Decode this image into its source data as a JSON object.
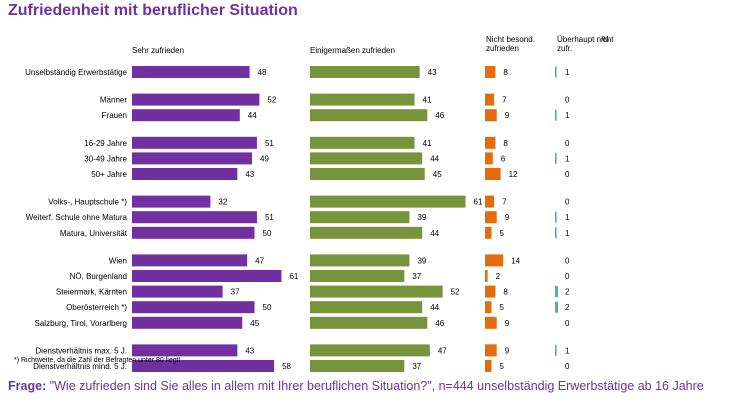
{
  "title": "Zufriedenheit mit beruflicher Situation",
  "chart_data": {
    "type": "bar",
    "orientation": "horizontal",
    "stacked": false,
    "series_headers": [
      "Sehr zufrieden",
      "Einigermaßen zufrieden",
      "Nicht besond. zufrieden",
      "Überhaupt nicht zufr."
    ],
    "unit_label": "%",
    "colors": [
      "#7030a0",
      "#77933c",
      "#e46c0a",
      "#4bacc6"
    ],
    "categories": [
      "Unselbständig Erwerbstätige",
      "Männer",
      "Frauen",
      "16-29 Jahre",
      "30-49 Jahre",
      "50+ Jahre",
      "Volks-, Hauptschule *)",
      "Weiterf. Schule ohne Matura",
      "Matura, Universität",
      "Wien",
      "NÖ, Burgenland",
      "Steiermark, Kärnten",
      "Oberösterreich *)",
      "Salzburg, Tirol, Vorarlberg",
      "Dienstverhältnis max. 5 J.",
      "Dienstverhältnis mind. 5 J."
    ],
    "groups": [
      [
        0
      ],
      [
        1,
        2
      ],
      [
        3,
        4,
        5
      ],
      [
        6,
        7,
        8
      ],
      [
        9,
        10,
        11,
        12,
        13
      ],
      [
        14,
        15
      ]
    ],
    "series": [
      {
        "name": "Sehr zufrieden",
        "values": [
          48,
          52,
          44,
          51,
          49,
          43,
          32,
          51,
          50,
          47,
          61,
          37,
          50,
          45,
          43,
          58
        ]
      },
      {
        "name": "Einigermaßen zufrieden",
        "values": [
          43,
          41,
          46,
          41,
          44,
          45,
          61,
          39,
          44,
          39,
          37,
          52,
          44,
          46,
          47,
          37
        ]
      },
      {
        "name": "Nicht besond. zufrieden",
        "values": [
          8,
          7,
          9,
          8,
          6,
          12,
          7,
          9,
          5,
          14,
          2,
          8,
          5,
          9,
          9,
          5
        ]
      },
      {
        "name": "Überhaupt nicht zufr.",
        "values": [
          1,
          0,
          1,
          0,
          1,
          0,
          0,
          1,
          1,
          0,
          0,
          2,
          2,
          0,
          1,
          0
        ]
      }
    ]
  },
  "footnote": "*) Richtweite, da die Zahl der Befragten unter 80 liegt!",
  "question": {
    "label": "Frage:",
    "text": "\"Wie zufrieden sind Sie alles in allem mit Ihrer beruflichen Situation?\", n=444 unselbständig Erwerbstätige ab 16 Jahre"
  }
}
